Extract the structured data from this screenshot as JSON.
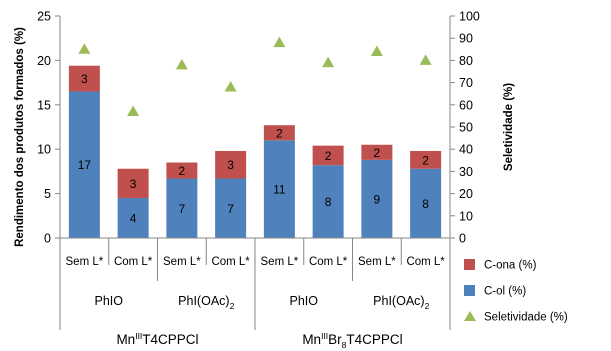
{
  "chart_data": {
    "type": "bar",
    "stacked": true,
    "categories": [
      "Sem L*",
      "Com L*",
      "Sem L*",
      "Com L*",
      "Sem L*",
      "Com L*",
      "Sem L*",
      "Com L*"
    ],
    "oxidant_groups": [
      {
        "label": "PhIO",
        "span": [
          0,
          1
        ]
      },
      {
        "label": "PhI(OAc)2",
        "span": [
          2,
          3
        ]
      },
      {
        "label": "PhIO",
        "span": [
          4,
          5
        ]
      },
      {
        "label": "PhI(OAc)2",
        "span": [
          6,
          7
        ]
      }
    ],
    "catalyst_groups": [
      {
        "label": "MnIIIT4CPPCl",
        "span": [
          0,
          3
        ]
      },
      {
        "label": "MnIIIBr8T4CPPCl",
        "span": [
          4,
          7
        ]
      }
    ],
    "series": [
      {
        "name": "C-ol (%)",
        "color": "#4f81bd",
        "values": [
          16.5,
          4.5,
          6.7,
          6.7,
          11.0,
          8.2,
          8.8,
          7.8
        ],
        "labels": [
          "17",
          "4",
          "7",
          "7",
          "11",
          "8",
          "9",
          "8"
        ],
        "axis": "left"
      },
      {
        "name": "C-ona (%)",
        "color": "#c0504d",
        "values": [
          2.9,
          3.3,
          1.8,
          3.1,
          1.7,
          2.2,
          1.7,
          2.0
        ],
        "labels": [
          "3",
          "3",
          "2",
          "3",
          "2",
          "2",
          "2",
          "2"
        ],
        "axis": "left"
      },
      {
        "name": "Seletividade (%)",
        "color": "#9bbb59",
        "type": "scatter",
        "marker": "triangle",
        "values": [
          85,
          57,
          78,
          68,
          88,
          79,
          84,
          80
        ],
        "axis": "right"
      }
    ],
    "ylabel": "Rendimento dos produtos formados (%)",
    "y2label": "Seletividade (%)",
    "ylim": [
      0,
      25
    ],
    "y2lim": [
      0,
      100
    ],
    "yticks": [
      0,
      5,
      10,
      15,
      20,
      25
    ],
    "y2ticks": [
      0,
      10,
      20,
      30,
      40,
      50,
      60,
      70,
      80,
      90,
      100
    ],
    "legend": [
      "C-ona (%)",
      "C-ol (%)",
      "Seletividade (%)"
    ],
    "legend_position": "right",
    "grid": false
  }
}
